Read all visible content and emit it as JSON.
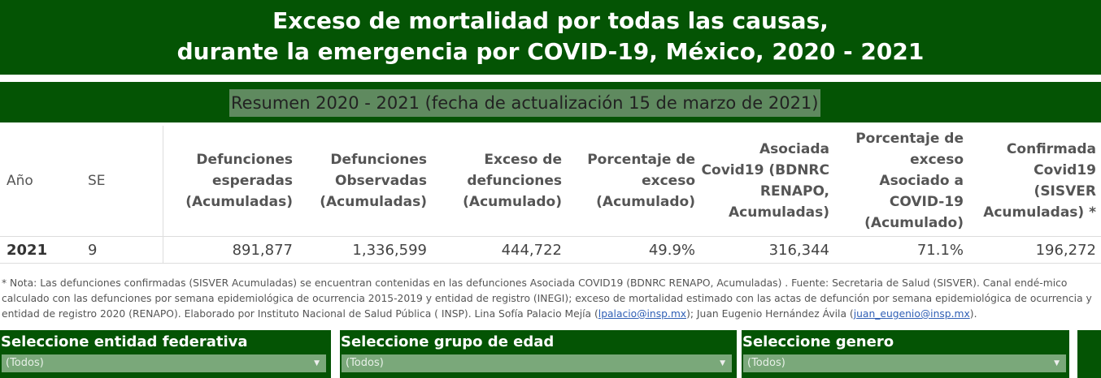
{
  "title": {
    "line1": "Exceso de mortalidad por todas las causas,",
    "line2": "durante la emergencia por COVID-19, México, 2020 - 2021"
  },
  "subtitle": "Resumen 2020 - 2021  (fecha de actualización 15 de marzo de 2021)",
  "table": {
    "headers": {
      "anio": "Año",
      "se": "SE",
      "esperadas": [
        "Defunciones",
        "esperadas",
        "(Acumuladas)"
      ],
      "observadas": [
        "Defunciones",
        "Observadas",
        "(Acumuladas)"
      ],
      "exceso": [
        "Exceso de",
        "defunciones",
        "(Acumulado)"
      ],
      "porcentaje": [
        "Porcentaje de",
        "exceso",
        "(Acumulado)"
      ],
      "asociada": [
        "Asociada",
        "Covid19 (BDNRC",
        "RENAPO,",
        "Acumuladas)"
      ],
      "porc_asociado": [
        "Porcentaje de",
        "exceso",
        "Asociado a",
        "COVID-19",
        "(Acumulado)"
      ],
      "confirmada": [
        "Confirmada",
        "Covid19",
        "(SISVER",
        "Acumuladas) *"
      ]
    },
    "row": {
      "anio": "2021",
      "se": "9",
      "esperadas": "891,877",
      "observadas": "1,336,599",
      "exceso": "444,722",
      "porcentaje": "49.9%",
      "asociada": "316,344",
      "porc_asociado": "71.1%",
      "confirmada": "196,272"
    }
  },
  "note": {
    "part1": "* Nota: Las defunciones confirmadas (SISVER Acumuladas) se encuentran contenidas en las defunciones Asociada COVID19 (BDNRC RENAPO, Acumuladas) . Fuente: Secretaria de Salud (SISVER). Canal endé-mico calculado con las defunciones por semana epidemiológica de ocurrencia 2015-2019 y entidad de registro (INEGI); exceso de mortalidad estimado con las actas de defunción por semana epidemiológica de ocurrencia y entidad de registro 2020 (RENAPO). Elaborado por Instituto Nacional de Salud Pública ( INSP). Lina Sofía Palacio Mejía (",
    "email1": "lpalacio@insp.mx",
    "part2": "); Juan Eugenio Hernández Ávila (",
    "email2": "juan_eugenio@insp.mx",
    "part3": ")."
  },
  "filters": [
    {
      "title": "Seleccione entidad federativa",
      "value": "(Todos)"
    },
    {
      "title": "Seleccione grupo de edad",
      "value": "(Todos)"
    },
    {
      "title": "Seleccione genero",
      "value": "(Todos)"
    }
  ],
  "icons": {
    "dropdown": "chevron-down-icon"
  },
  "colors": {
    "header_green": "#045404",
    "subtitle_bg": "#5f8a5f",
    "select_bg": "#7aa87a"
  }
}
